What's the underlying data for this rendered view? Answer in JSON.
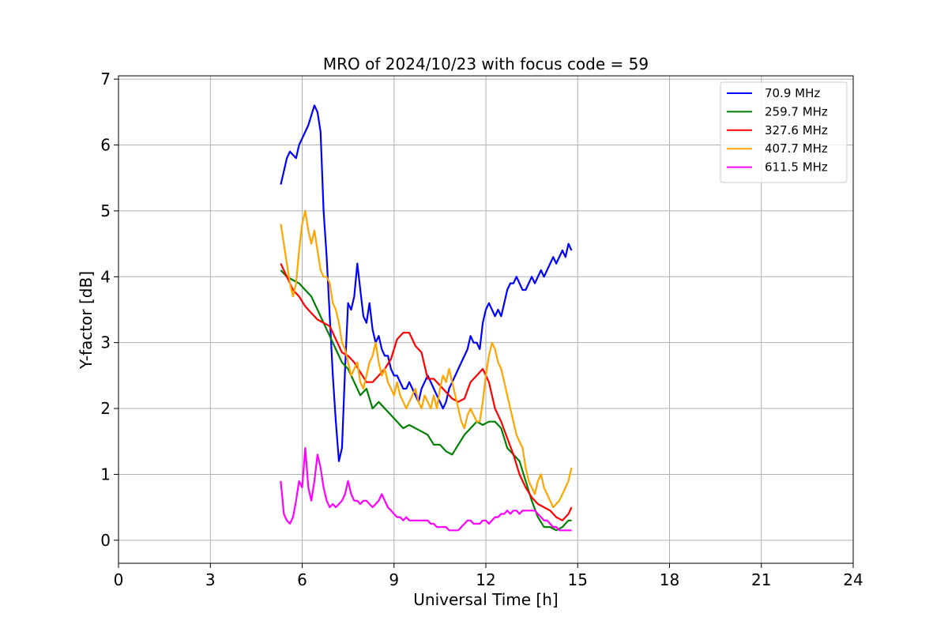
{
  "chart_data": {
    "type": "line",
    "title": "MRO of 2024/10/23 with focus code = 59",
    "xlabel": "Universal Time [h]",
    "ylabel": "Y-factor [dB]",
    "xlim": [
      0,
      24
    ],
    "ylim": [
      -0.35,
      7.05
    ],
    "xticks": [
      0,
      3,
      6,
      9,
      12,
      15,
      18,
      21,
      24
    ],
    "yticks": [
      0,
      1,
      2,
      3,
      4,
      5,
      6,
      7
    ],
    "grid": true,
    "legend_position": "top-right",
    "series": [
      {
        "name": " 70.9 MHz",
        "color": "#0000ff",
        "x": [
          5.3,
          5.4,
          5.5,
          5.6,
          5.7,
          5.8,
          5.9,
          6.0,
          6.1,
          6.2,
          6.3,
          6.4,
          6.5,
          6.6,
          6.7,
          6.8,
          6.9,
          7.0,
          7.1,
          7.2,
          7.3,
          7.4,
          7.5,
          7.6,
          7.7,
          7.8,
          7.9,
          8.0,
          8.1,
          8.2,
          8.3,
          8.4,
          8.5,
          8.6,
          8.7,
          8.8,
          8.9,
          9.0,
          9.1,
          9.2,
          9.3,
          9.4,
          9.5,
          9.6,
          9.7,
          9.8,
          9.9,
          10.0,
          10.1,
          10.2,
          10.3,
          10.4,
          10.5,
          10.6,
          10.7,
          10.8,
          10.9,
          11.0,
          11.1,
          11.2,
          11.3,
          11.4,
          11.5,
          11.6,
          11.7,
          11.8,
          11.9,
          12.0,
          12.1,
          12.2,
          12.3,
          12.4,
          12.5,
          12.6,
          12.7,
          12.8,
          12.9,
          13.0,
          13.1,
          13.2,
          13.3,
          13.4,
          13.5,
          13.6,
          13.7,
          13.8,
          13.9,
          14.0,
          14.1,
          14.2,
          14.3,
          14.4,
          14.5,
          14.6,
          14.7,
          14.8
        ],
        "y": [
          5.4,
          5.6,
          5.8,
          5.9,
          5.85,
          5.8,
          6.0,
          6.1,
          6.2,
          6.3,
          6.45,
          6.6,
          6.5,
          6.2,
          5.0,
          4.3,
          3.4,
          2.5,
          1.8,
          1.2,
          1.4,
          2.6,
          3.6,
          3.5,
          3.7,
          4.2,
          3.8,
          3.4,
          3.3,
          3.6,
          3.2,
          3.0,
          3.1,
          2.9,
          2.8,
          2.8,
          2.6,
          2.5,
          2.5,
          2.4,
          2.3,
          2.3,
          2.4,
          2.3,
          2.2,
          2.1,
          2.3,
          2.4,
          2.5,
          2.4,
          2.3,
          2.2,
          2.1,
          2.0,
          2.1,
          2.3,
          2.4,
          2.5,
          2.6,
          2.7,
          2.8,
          2.9,
          3.1,
          3.0,
          3.0,
          2.9,
          3.3,
          3.5,
          3.6,
          3.5,
          3.4,
          3.5,
          3.4,
          3.6,
          3.8,
          3.9,
          3.9,
          4.0,
          3.9,
          3.8,
          3.8,
          3.9,
          4.0,
          3.9,
          4.0,
          4.1,
          4.0,
          4.1,
          4.2,
          4.3,
          4.2,
          4.3,
          4.4,
          4.3,
          4.5,
          4.4
        ]
      },
      {
        "name": " 259.7 MHz",
        "color": "#008000",
        "x": [
          5.3,
          5.5,
          5.7,
          5.9,
          6.1,
          6.3,
          6.5,
          6.7,
          6.9,
          7.1,
          7.3,
          7.5,
          7.7,
          7.9,
          8.1,
          8.3,
          8.5,
          8.7,
          8.9,
          9.1,
          9.3,
          9.5,
          9.7,
          9.9,
          10.1,
          10.3,
          10.5,
          10.7,
          10.9,
          11.1,
          11.3,
          11.5,
          11.7,
          11.9,
          12.1,
          12.3,
          12.5,
          12.7,
          12.9,
          13.1,
          13.3,
          13.5,
          13.7,
          13.9,
          14.1,
          14.3,
          14.5,
          14.7,
          14.8
        ],
        "y": [
          4.1,
          4.0,
          3.95,
          3.9,
          3.8,
          3.7,
          3.5,
          3.3,
          3.1,
          2.9,
          2.7,
          2.6,
          2.4,
          2.2,
          2.3,
          2.0,
          2.1,
          2.0,
          1.9,
          1.8,
          1.7,
          1.75,
          1.7,
          1.65,
          1.6,
          1.45,
          1.45,
          1.35,
          1.3,
          1.45,
          1.6,
          1.7,
          1.8,
          1.75,
          1.8,
          1.8,
          1.7,
          1.4,
          1.3,
          1.2,
          0.9,
          0.6,
          0.35,
          0.2,
          0.2,
          0.15,
          0.2,
          0.3,
          0.3
        ]
      },
      {
        "name": " 327.6 MHz",
        "color": "#ff0000",
        "x": [
          5.3,
          5.5,
          5.7,
          5.9,
          6.1,
          6.3,
          6.5,
          6.7,
          6.9,
          7.1,
          7.3,
          7.5,
          7.7,
          7.9,
          8.1,
          8.3,
          8.5,
          8.7,
          8.9,
          9.1,
          9.3,
          9.5,
          9.7,
          9.9,
          10.1,
          10.3,
          10.5,
          10.7,
          10.9,
          11.1,
          11.3,
          11.5,
          11.7,
          11.9,
          12.1,
          12.3,
          12.5,
          12.7,
          12.9,
          13.1,
          13.3,
          13.5,
          13.7,
          13.9,
          14.1,
          14.3,
          14.5,
          14.7,
          14.8
        ],
        "y": [
          4.2,
          4.0,
          3.8,
          3.7,
          3.55,
          3.45,
          3.35,
          3.3,
          3.25,
          3.05,
          2.85,
          2.8,
          2.7,
          2.55,
          2.4,
          2.4,
          2.5,
          2.6,
          2.75,
          3.05,
          3.15,
          3.15,
          2.95,
          2.85,
          2.45,
          2.45,
          2.35,
          2.25,
          2.15,
          2.1,
          2.15,
          2.4,
          2.5,
          2.6,
          2.4,
          2.0,
          1.8,
          1.55,
          1.3,
          1.0,
          0.8,
          0.65,
          0.55,
          0.5,
          0.45,
          0.35,
          0.3,
          0.4,
          0.5
        ]
      },
      {
        "name": " 407.7 MHz",
        "color": "#ffa500",
        "x": [
          5.3,
          5.4,
          5.5,
          5.6,
          5.7,
          5.8,
          5.9,
          6.0,
          6.1,
          6.2,
          6.3,
          6.4,
          6.5,
          6.6,
          6.7,
          6.8,
          6.9,
          7.0,
          7.1,
          7.2,
          7.3,
          7.4,
          7.5,
          7.6,
          7.7,
          7.8,
          7.9,
          8.0,
          8.1,
          8.2,
          8.3,
          8.4,
          8.5,
          8.6,
          8.7,
          8.8,
          8.9,
          9.0,
          9.1,
          9.2,
          9.3,
          9.4,
          9.5,
          9.6,
          9.7,
          9.8,
          9.9,
          10.0,
          10.1,
          10.2,
          10.3,
          10.4,
          10.5,
          10.6,
          10.7,
          10.8,
          10.9,
          11.0,
          11.1,
          11.2,
          11.3,
          11.4,
          11.5,
          11.6,
          11.7,
          11.8,
          11.9,
          12.0,
          12.1,
          12.2,
          12.3,
          12.4,
          12.5,
          12.6,
          12.7,
          12.8,
          12.9,
          13.0,
          13.1,
          13.2,
          13.3,
          13.4,
          13.5,
          13.6,
          13.7,
          13.8,
          13.9,
          14.0,
          14.1,
          14.2,
          14.3,
          14.4,
          14.5,
          14.6,
          14.7,
          14.8
        ],
        "y": [
          4.8,
          4.5,
          4.2,
          3.9,
          3.7,
          3.9,
          4.4,
          4.8,
          5.0,
          4.7,
          4.5,
          4.7,
          4.4,
          4.1,
          4.0,
          4.0,
          3.9,
          3.6,
          3.5,
          3.3,
          3.0,
          2.9,
          2.7,
          2.5,
          2.6,
          2.7,
          2.4,
          2.3,
          2.5,
          2.7,
          2.8,
          3.0,
          2.7,
          2.5,
          2.6,
          2.4,
          2.3,
          2.2,
          2.4,
          2.2,
          2.1,
          2.0,
          2.1,
          2.2,
          2.3,
          2.1,
          2.0,
          2.2,
          2.1,
          2.0,
          2.2,
          2.0,
          2.3,
          2.5,
          2.4,
          2.6,
          2.4,
          2.2,
          2.0,
          1.8,
          1.7,
          1.9,
          2.0,
          1.9,
          1.8,
          1.8,
          2.1,
          2.5,
          2.8,
          3.0,
          2.9,
          2.7,
          2.6,
          2.4,
          2.2,
          2.0,
          1.8,
          1.6,
          1.5,
          1.4,
          1.1,
          0.9,
          0.8,
          0.7,
          0.9,
          1.0,
          0.8,
          0.7,
          0.6,
          0.5,
          0.55,
          0.6,
          0.7,
          0.8,
          0.9,
          1.1
        ]
      },
      {
        "name": " 611.5 MHz",
        "color": "#ff00ff",
        "x": [
          5.3,
          5.4,
          5.5,
          5.6,
          5.7,
          5.8,
          5.9,
          6.0,
          6.1,
          6.2,
          6.3,
          6.4,
          6.5,
          6.6,
          6.7,
          6.8,
          6.9,
          7.0,
          7.1,
          7.2,
          7.3,
          7.4,
          7.5,
          7.6,
          7.7,
          7.8,
          7.9,
          8.0,
          8.1,
          8.2,
          8.3,
          8.4,
          8.5,
          8.6,
          8.7,
          8.8,
          8.9,
          9.0,
          9.1,
          9.2,
          9.3,
          9.4,
          9.5,
          9.6,
          9.7,
          9.8,
          9.9,
          10.0,
          10.1,
          10.2,
          10.3,
          10.4,
          10.5,
          10.6,
          10.7,
          10.8,
          10.9,
          11.0,
          11.1,
          11.2,
          11.3,
          11.4,
          11.5,
          11.6,
          11.7,
          11.8,
          11.9,
          12.0,
          12.1,
          12.2,
          12.3,
          12.4,
          12.5,
          12.6,
          12.7,
          12.8,
          12.9,
          13.0,
          13.1,
          13.2,
          13.3,
          13.4,
          13.5,
          13.6,
          13.7,
          13.8,
          13.9,
          14.0,
          14.1,
          14.2,
          14.3,
          14.4,
          14.5,
          14.6,
          14.7,
          14.8
        ],
        "y": [
          0.9,
          0.4,
          0.3,
          0.25,
          0.35,
          0.6,
          0.9,
          0.8,
          1.4,
          0.8,
          0.6,
          0.9,
          1.3,
          1.1,
          0.8,
          0.6,
          0.5,
          0.55,
          0.5,
          0.55,
          0.6,
          0.7,
          0.9,
          0.7,
          0.6,
          0.6,
          0.55,
          0.6,
          0.6,
          0.55,
          0.5,
          0.55,
          0.6,
          0.7,
          0.6,
          0.5,
          0.45,
          0.4,
          0.35,
          0.35,
          0.3,
          0.35,
          0.3,
          0.3,
          0.3,
          0.3,
          0.3,
          0.3,
          0.3,
          0.25,
          0.25,
          0.2,
          0.2,
          0.2,
          0.2,
          0.15,
          0.15,
          0.15,
          0.15,
          0.2,
          0.25,
          0.3,
          0.3,
          0.25,
          0.25,
          0.25,
          0.3,
          0.3,
          0.25,
          0.3,
          0.35,
          0.35,
          0.4,
          0.4,
          0.45,
          0.4,
          0.45,
          0.45,
          0.4,
          0.45,
          0.45,
          0.45,
          0.45,
          0.45,
          0.4,
          0.35,
          0.3,
          0.3,
          0.25,
          0.2,
          0.2,
          0.15,
          0.15,
          0.15,
          0.15,
          0.15
        ]
      }
    ]
  }
}
